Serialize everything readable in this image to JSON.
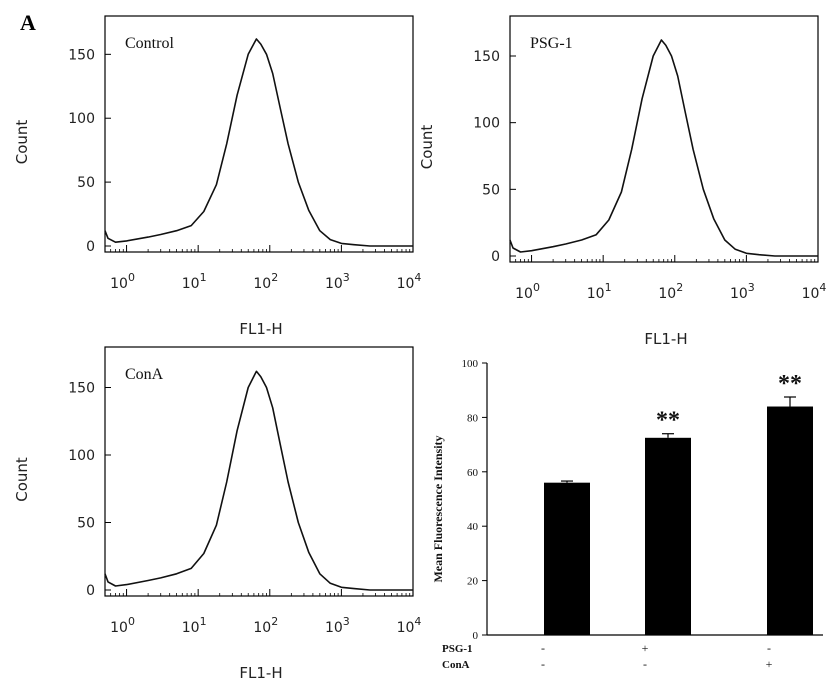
{
  "figure": {
    "panel_letter": "A"
  },
  "chart_data": [
    {
      "type": "line",
      "title": "Control",
      "xlabel": "FL1-H",
      "ylabel": "Count",
      "x_scale": "log",
      "xlim": [
        0.5,
        10000
      ],
      "ylim": [
        0,
        180
      ],
      "x_ticks": [
        {
          "base": "10",
          "exp": "0"
        },
        {
          "base": "10",
          "exp": "1"
        },
        {
          "base": "10",
          "exp": "2"
        },
        {
          "base": "10",
          "exp": "3"
        },
        {
          "base": "10",
          "exp": "4"
        }
      ],
      "y_ticks": [
        "0",
        "50",
        "100",
        "150"
      ],
      "series": [
        {
          "x": [
            0.5,
            0.55,
            0.7,
            1,
            2,
            3,
            5,
            8,
            12,
            18,
            25,
            35,
            50,
            65,
            75,
            90,
            110,
            140,
            180,
            250,
            350,
            500,
            700,
            1000,
            1500,
            2500,
            5000,
            10000
          ],
          "y": [
            12,
            6,
            3,
            4,
            7,
            9,
            12,
            16,
            27,
            48,
            80,
            118,
            150,
            162,
            158,
            150,
            135,
            108,
            80,
            50,
            28,
            12,
            5,
            2,
            1,
            0,
            0,
            0
          ]
        }
      ]
    },
    {
      "type": "line",
      "title": "PSG-1",
      "xlabel": "FL1-H",
      "ylabel": "Count",
      "x_scale": "log",
      "xlim": [
        0.5,
        10000
      ],
      "ylim": [
        0,
        180
      ],
      "x_ticks": [
        {
          "base": "10",
          "exp": "0"
        },
        {
          "base": "10",
          "exp": "1"
        },
        {
          "base": "10",
          "exp": "2"
        },
        {
          "base": "10",
          "exp": "3"
        },
        {
          "base": "10",
          "exp": "4"
        }
      ],
      "y_ticks": [
        "0",
        "50",
        "100",
        "150"
      ],
      "series": [
        {
          "x": [
            0.5,
            0.55,
            0.7,
            1,
            2,
            3,
            5,
            8,
            12,
            18,
            25,
            35,
            50,
            65,
            75,
            90,
            110,
            140,
            180,
            250,
            350,
            500,
            700,
            1000,
            1500,
            2500,
            5000,
            10000
          ],
          "y": [
            12,
            6,
            3,
            4,
            7,
            9,
            12,
            16,
            27,
            48,
            80,
            118,
            150,
            162,
            158,
            150,
            135,
            108,
            80,
            50,
            28,
            12,
            5,
            2,
            1,
            0,
            0,
            0
          ]
        }
      ]
    },
    {
      "type": "line",
      "title": "ConA",
      "xlabel": "FL1-H",
      "ylabel": "Count",
      "x_scale": "log",
      "xlim": [
        0.5,
        10000
      ],
      "ylim": [
        0,
        180
      ],
      "x_ticks": [
        {
          "base": "10",
          "exp": "0"
        },
        {
          "base": "10",
          "exp": "1"
        },
        {
          "base": "10",
          "exp": "2"
        },
        {
          "base": "10",
          "exp": "3"
        },
        {
          "base": "10",
          "exp": "4"
        }
      ],
      "y_ticks": [
        "0",
        "50",
        "100",
        "150"
      ],
      "series": [
        {
          "x": [
            0.5,
            0.55,
            0.7,
            1,
            2,
            3,
            5,
            8,
            12,
            18,
            25,
            35,
            50,
            65,
            75,
            90,
            110,
            140,
            180,
            250,
            350,
            500,
            700,
            1000,
            1500,
            2500,
            5000,
            10000
          ],
          "y": [
            12,
            6,
            3,
            4,
            7,
            9,
            12,
            16,
            27,
            48,
            80,
            118,
            150,
            162,
            158,
            150,
            135,
            108,
            80,
            50,
            28,
            12,
            5,
            2,
            1,
            0,
            0,
            0
          ]
        }
      ]
    },
    {
      "type": "bar",
      "title": "",
      "xlabel": "",
      "ylabel": "Mean Fluorescence Intensity",
      "ylim": [
        0,
        100
      ],
      "y_ticks": [
        "0",
        "20",
        "40",
        "60",
        "80",
        "100"
      ],
      "values": [
        56,
        72.5,
        84
      ],
      "errors": [
        0.6,
        1.5,
        3.5
      ],
      "significance": [
        "",
        "**",
        "**"
      ],
      "bar_color": "#000000",
      "conditions": [
        {
          "label": "PSG-1",
          "marks": [
            "-",
            "+",
            "-"
          ]
        },
        {
          "label": "ConA",
          "marks": [
            "-",
            "-",
            "+"
          ]
        }
      ]
    }
  ]
}
